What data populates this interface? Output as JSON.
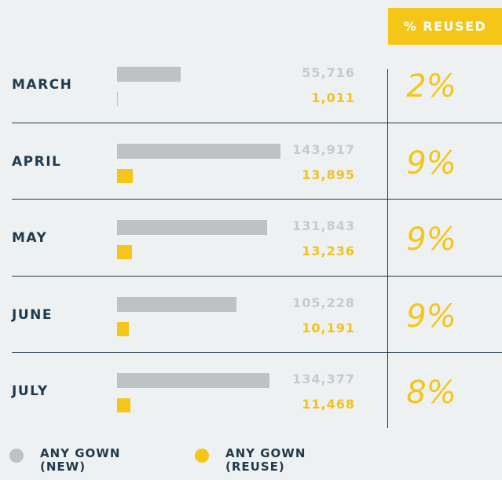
{
  "chart_data": {
    "type": "bar",
    "orientation": "horizontal",
    "categories": [
      "MARCH",
      "APRIL",
      "MAY",
      "JUNE",
      "JULY"
    ],
    "series": [
      {
        "name": "ANY GOWN (NEW)",
        "color": "#bfc2c4",
        "values": [
          55716,
          143917,
          131843,
          105228,
          134377
        ],
        "value_labels": [
          "55,716",
          "143,917",
          "131,843",
          "105,228",
          "134,377"
        ]
      },
      {
        "name": "ANY GOWN (REUSE)",
        "color": "#f5c518",
        "values": [
          1011,
          13895,
          13236,
          10191,
          11468
        ],
        "value_labels": [
          "1,011",
          "13,895",
          "13,236",
          "10,191",
          "11,468"
        ]
      }
    ],
    "reused": {
      "title": "% REUSED",
      "color": "#f5c518",
      "values": [
        2,
        9,
        9,
        9,
        8
      ],
      "value_labels": [
        "2%",
        "9%",
        "9%",
        "9%",
        "8%"
      ]
    },
    "legend": "bottom"
  }
}
